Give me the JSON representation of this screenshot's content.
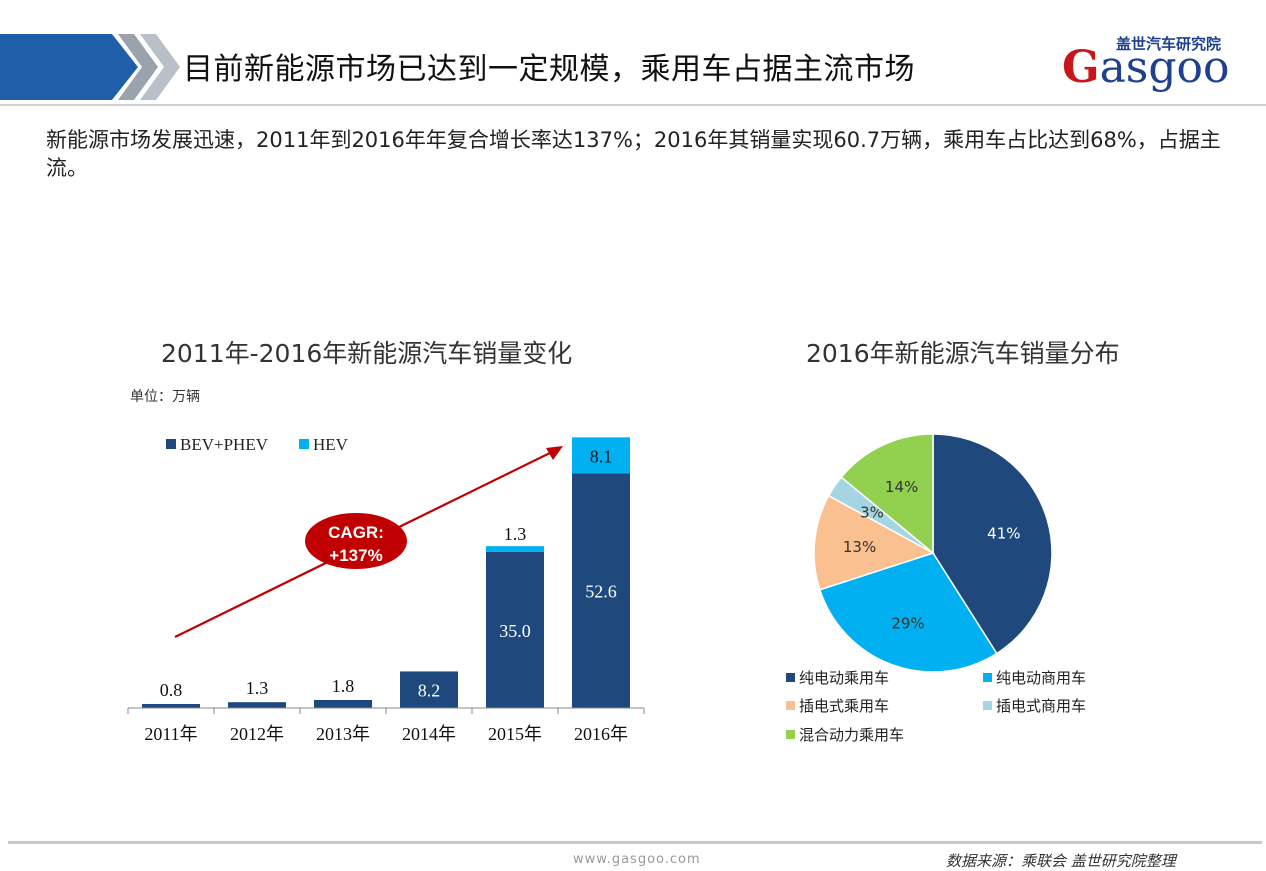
{
  "header": {
    "title": "目前新能源市场已达到一定规模，乘用车占据主流市场",
    "logo_cn": "盖世汽车研究院",
    "logo_en_initial": "G",
    "logo_en_rest": "asgoo",
    "band_color": "#1f5ea8"
  },
  "summary": "新能源市场发展迅速，2011年到2016年年复合增长率达137%；2016年其销量实现60.7万辆，乘用车占比达到68%，占据主流。",
  "footer": {
    "url": "www.gasgoo.com",
    "source": "数据来源：乘联会 盖世研究院整理"
  },
  "chart_data": [
    {
      "type": "bar",
      "stacked": true,
      "title": "2011年-2016年新能源汽车销量变化",
      "unit": "单位：万辆",
      "categories": [
        "2011年",
        "2012年",
        "2013年",
        "2014年",
        "2015年",
        "2016年"
      ],
      "series": [
        {
          "name": "BEV+PHEV",
          "color": "#1f497d",
          "values": [
            0.8,
            1.3,
            1.8,
            8.2,
            35.0,
            52.6
          ]
        },
        {
          "name": "HEV",
          "color": "#00b0f0",
          "values": [
            0,
            0,
            0,
            0,
            1.3,
            8.1
          ]
        }
      ],
      "data_labels": {
        "BEV+PHEV": [
          "0.8",
          "1.3",
          "1.8",
          "8.2",
          "35.0",
          "52.6"
        ],
        "HEV": [
          "",
          "",
          "",
          "",
          "1.3",
          "8.1"
        ]
      },
      "ylim": [
        0,
        61
      ],
      "annotation": {
        "line1": "CAGR:",
        "line2": "+137%",
        "color": "#c00000"
      },
      "legend_position": "top-left",
      "grid": false
    },
    {
      "type": "pie",
      "title": "2016年新能源汽车销量分布",
      "slices": [
        {
          "name": "纯电动乘用车",
          "value": 41,
          "label": "41%",
          "color": "#1f497d"
        },
        {
          "name": "纯电动商用车",
          "value": 29,
          "label": "29%",
          "color": "#00b0f0"
        },
        {
          "name": "插电式乘用车",
          "value": 13,
          "label": "13%",
          "color": "#fac090"
        },
        {
          "name": "插电式商用车",
          "value": 3,
          "label": "3%",
          "color": "#a5d5e2"
        },
        {
          "name": "混合动力乘用车",
          "value": 14,
          "label": "14%",
          "color": "#92d050"
        }
      ],
      "legend_position": "bottom"
    }
  ]
}
